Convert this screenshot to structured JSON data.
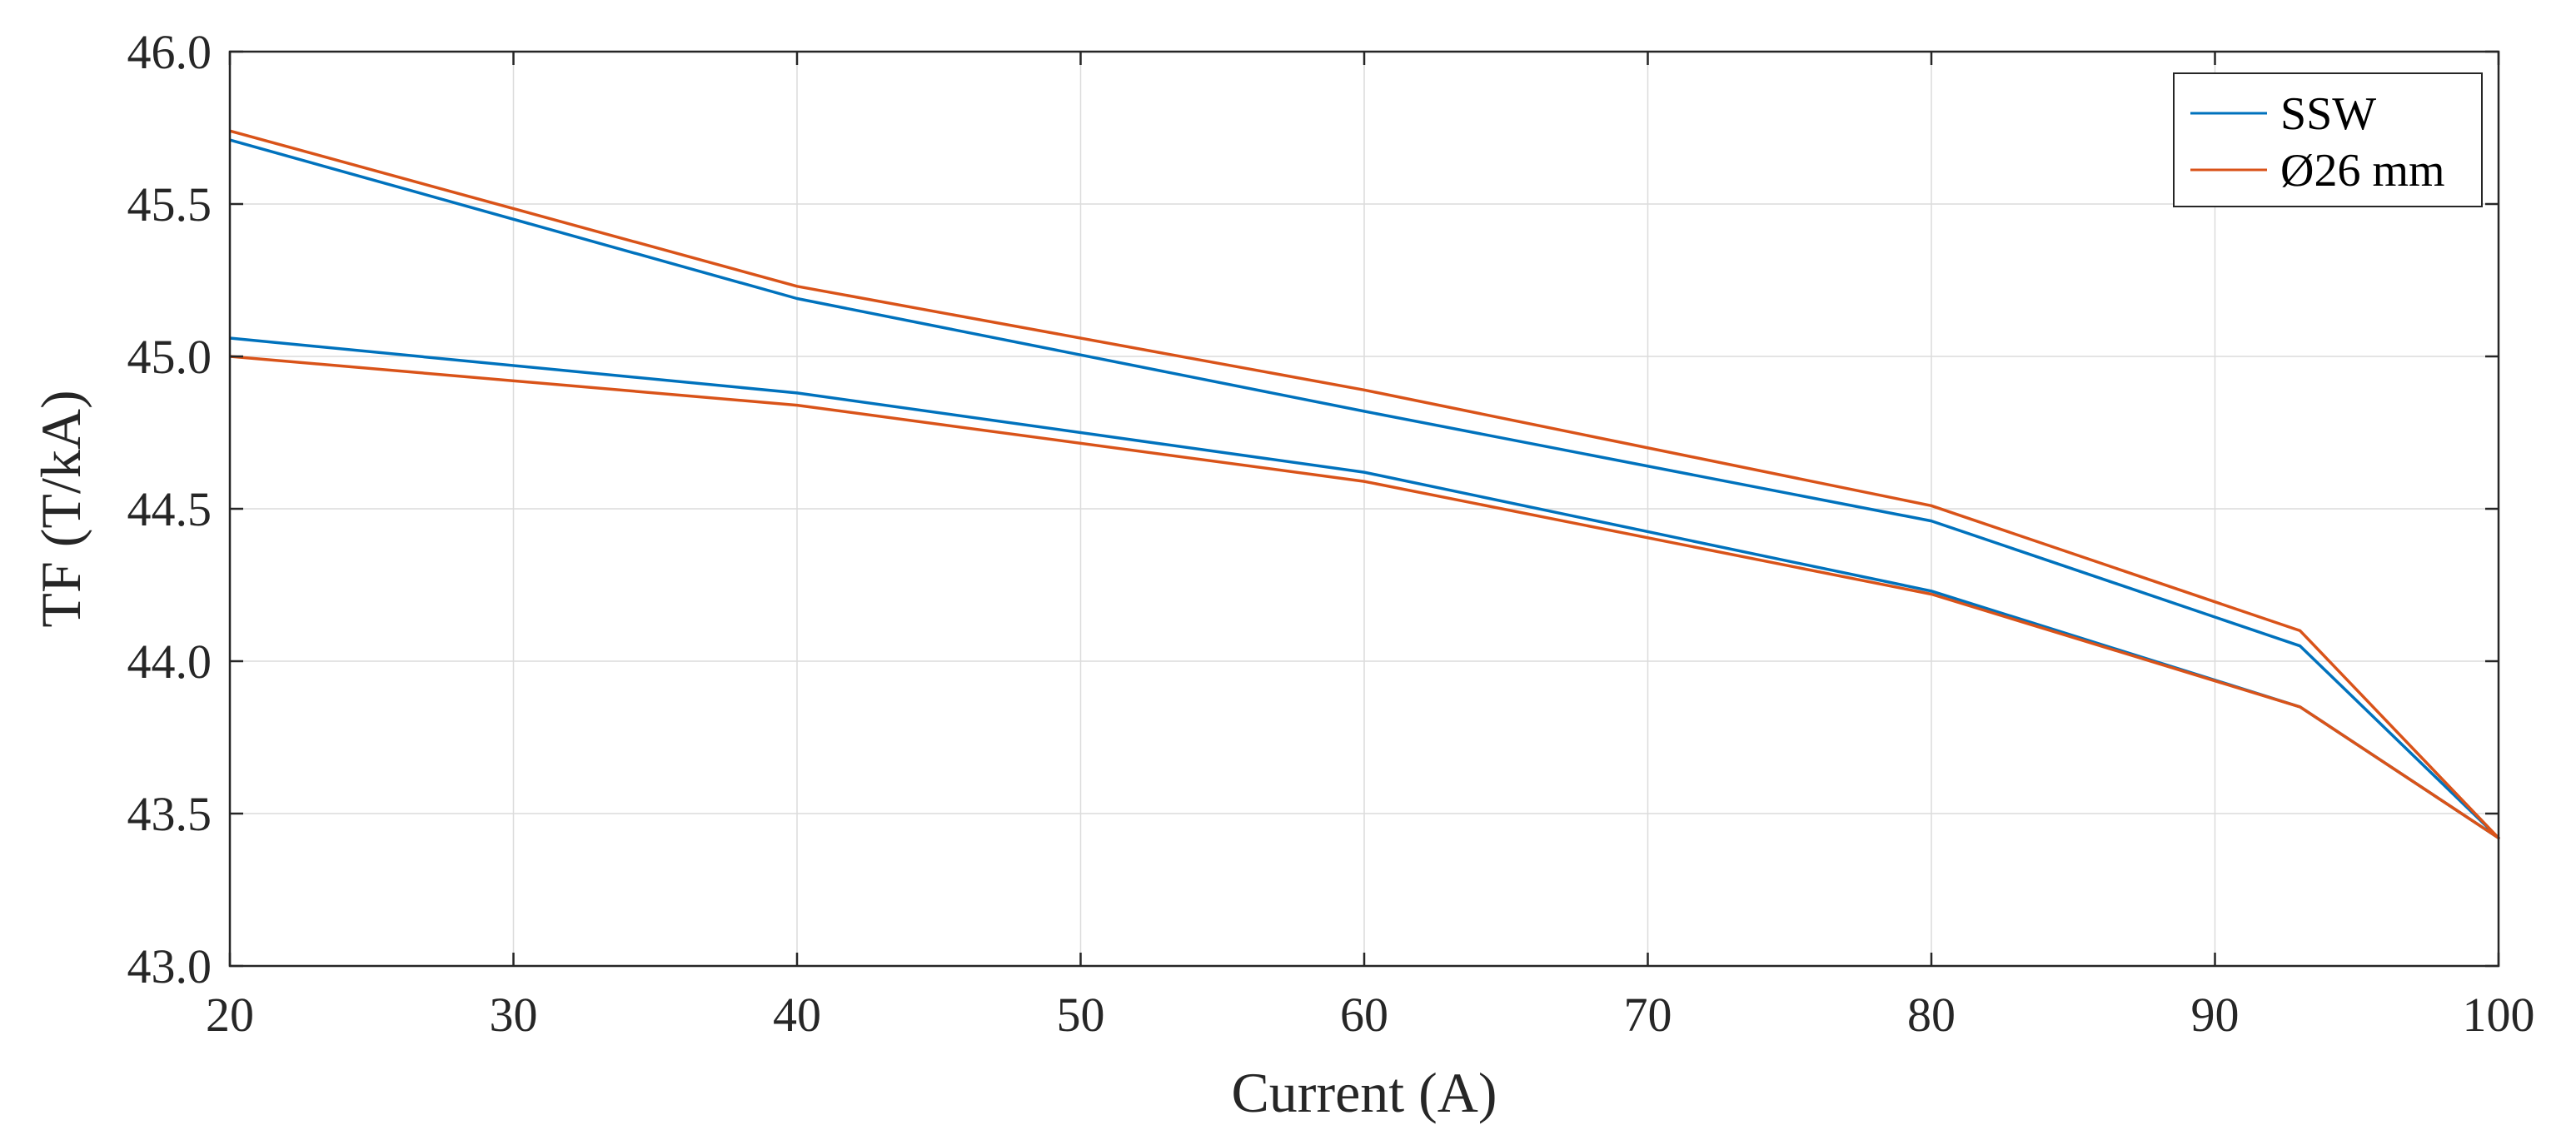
{
  "chart_data": {
    "type": "line",
    "xlabel": "Current (A)",
    "ylabel": "TF (T/kA)",
    "xlim": [
      20,
      100
    ],
    "ylim": [
      43.0,
      46.0
    ],
    "xticks": [
      20,
      30,
      40,
      50,
      60,
      70,
      80,
      90,
      100
    ],
    "xtick_labels": [
      "20",
      "30",
      "40",
      "50",
      "60",
      "70",
      "80",
      "90",
      "100"
    ],
    "yticks": [
      43.0,
      43.5,
      44.0,
      44.5,
      45.0,
      45.5,
      46.0
    ],
    "ytick_labels": [
      "43.0",
      "43.5",
      "44.0",
      "44.5",
      "45.0",
      "45.5",
      "46.0"
    ],
    "grid": true,
    "legend_position": "top-right",
    "series": [
      {
        "name": "SSW",
        "color": "#0072BD",
        "x": [
          20,
          40,
          60,
          80,
          93,
          100,
          93,
          80,
          60,
          40,
          20
        ],
        "y": [
          45.71,
          45.19,
          44.82,
          44.46,
          44.05,
          43.42,
          43.85,
          44.23,
          44.62,
          44.88,
          45.06
        ]
      },
      {
        "name": "Ø26 mm",
        "color": "#D95319",
        "x": [
          20,
          40,
          60,
          80,
          93,
          100,
          93,
          80,
          60,
          40,
          20
        ],
        "y": [
          45.74,
          45.23,
          44.89,
          44.51,
          44.1,
          43.42,
          43.85,
          44.22,
          44.59,
          44.84,
          45.0
        ]
      }
    ]
  }
}
